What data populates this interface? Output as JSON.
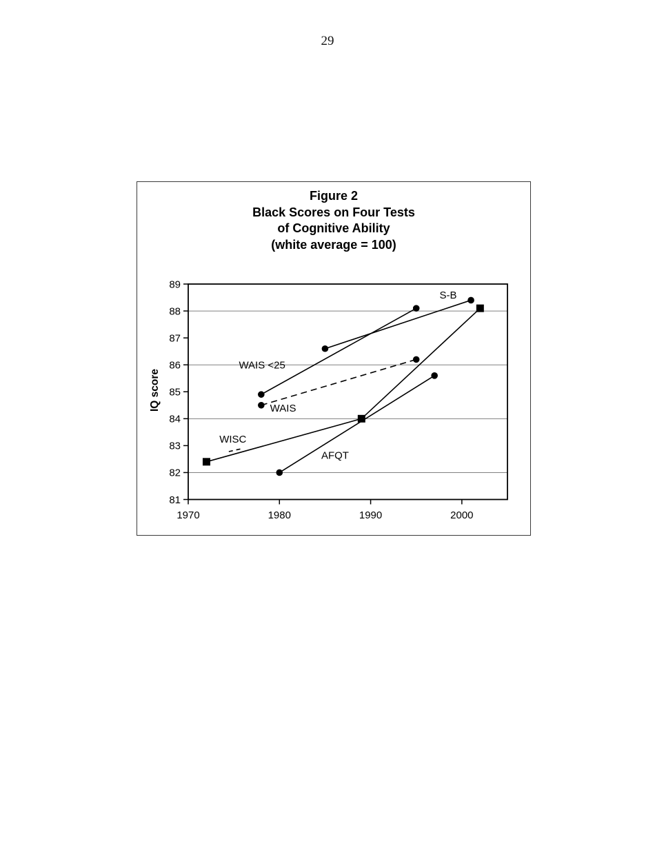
{
  "page": {
    "number": "29"
  },
  "figure": {
    "title_lines": [
      "Figure 2",
      "Black Scores on Four Tests",
      "of Cognitive Ability",
      "(white average = 100)"
    ]
  },
  "chart_data": {
    "type": "line",
    "title": "Figure 2 — Black Scores on Four Tests of Cognitive Ability (white average = 100)",
    "xlabel": "",
    "ylabel": "IQ score",
    "xlim": [
      1970,
      2005
    ],
    "ylim": [
      81,
      89
    ],
    "x_ticks": [
      1970,
      1980,
      1990,
      2000
    ],
    "y_ticks": [
      81,
      82,
      83,
      84,
      85,
      86,
      87,
      88,
      89
    ],
    "y_gridlines": [
      82,
      84,
      86,
      88
    ],
    "grid": "horizontal only, at even IQ values",
    "legend": "none (inline series labels)",
    "colors": {
      "line": "#000000",
      "grid": "#808080",
      "frame": "#000000",
      "outer_border": "#3a3a3a"
    },
    "series": [
      {
        "name": "S-B",
        "marker": "circle",
        "line_style": "solid",
        "x": [
          1985,
          2001
        ],
        "y": [
          86.6,
          88.4
        ]
      },
      {
        "name": "WAIS",
        "marker": "circle",
        "line_style": "solid",
        "x": [
          1978,
          1995
        ],
        "y": [
          84.9,
          88.1
        ]
      },
      {
        "name": "WAIS <25",
        "marker": "circle",
        "line_style": "dashed",
        "x": [
          1978,
          1995
        ],
        "y": [
          84.5,
          86.2
        ]
      },
      {
        "name": "WISC",
        "marker": "square",
        "line_style": "solid",
        "x": [
          1972,
          1989,
          2002
        ],
        "y": [
          82.4,
          84.0,
          88.1
        ]
      },
      {
        "name": "AFQT",
        "marker": "circle",
        "line_style": "solid",
        "x": [
          1980,
          1997
        ],
        "y": [
          82.0,
          85.6
        ]
      }
    ],
    "annotations": [
      {
        "text": "S-B",
        "x": 1998.5,
        "y": 88.6
      },
      {
        "text": "WAIS <25",
        "x": 1978.1,
        "y": 86.0
      },
      {
        "text": "WAIS",
        "x": 1980.4,
        "y": 84.4
      },
      {
        "text": "WISC",
        "x": 1974.9,
        "y": 83.25
      },
      {
        "text": "AFQT",
        "x": 1986.1,
        "y": 82.65
      }
    ],
    "extra_marks": [
      {
        "type": "dashed-segment",
        "x1": 1974.45,
        "y1": 82.78,
        "x2": 1976.05,
        "y2": 82.9
      }
    ]
  }
}
